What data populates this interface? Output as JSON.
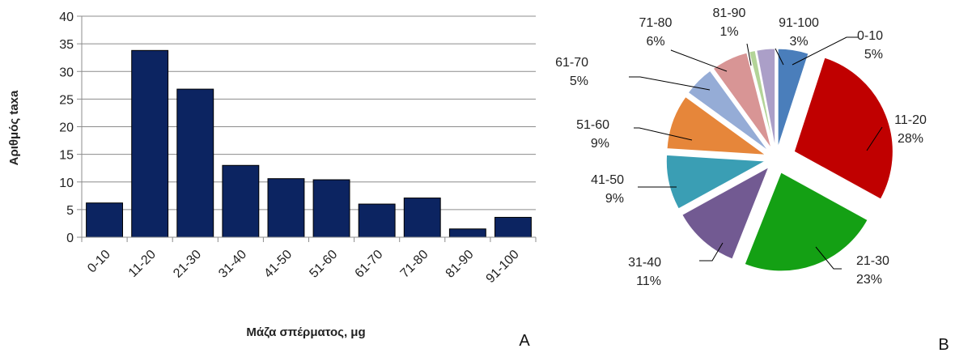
{
  "chart_data": [
    {
      "type": "bar",
      "categories": [
        "0-10",
        "11-20",
        "21-30",
        "31-40",
        "41-50",
        "51-60",
        "61-70",
        "71-80",
        "81-90",
        "91-100"
      ],
      "values": [
        6.2,
        33.8,
        26.8,
        13.0,
        10.6,
        10.4,
        6.0,
        7.1,
        1.5,
        3.6
      ],
      "xlabel": "Μάζα σπέρματος, μg",
      "ylabel": "Αριθμός taxa",
      "ylim": [
        0,
        40
      ],
      "yticks": [
        0,
        5,
        10,
        15,
        20,
        25,
        30,
        35,
        40
      ],
      "grid": true,
      "bar_color": "#0c2461",
      "panel_label": "A"
    },
    {
      "type": "pie",
      "panel_label": "B",
      "exploded": true,
      "slices": [
        {
          "label": "0-10",
          "pct_label": "5%",
          "value": 5,
          "color": "#4a7ebb"
        },
        {
          "label": "11-20",
          "pct_label": "28%",
          "value": 28,
          "color": "#c00000"
        },
        {
          "label": "21-30",
          "pct_label": "23%",
          "value": 23,
          "color": "#14a014"
        },
        {
          "label": "31-40",
          "pct_label": "11%",
          "value": 11,
          "color": "#725a92"
        },
        {
          "label": "41-50",
          "pct_label": "9%",
          "value": 9,
          "color": "#3a9eb4"
        },
        {
          "label": "51-60",
          "pct_label": "9%",
          "value": 9,
          "color": "#e6863a"
        },
        {
          "label": "61-70",
          "pct_label": "5%",
          "value": 5,
          "color": "#95acd6"
        },
        {
          "label": "71-80",
          "pct_label": "6%",
          "value": 6,
          "color": "#d89595"
        },
        {
          "label": "81-90",
          "pct_label": "1%",
          "value": 1,
          "color": "#b3d498"
        },
        {
          "label": "91-100",
          "pct_label": "3%",
          "value": 3,
          "color": "#ab9fc8"
        }
      ]
    }
  ]
}
